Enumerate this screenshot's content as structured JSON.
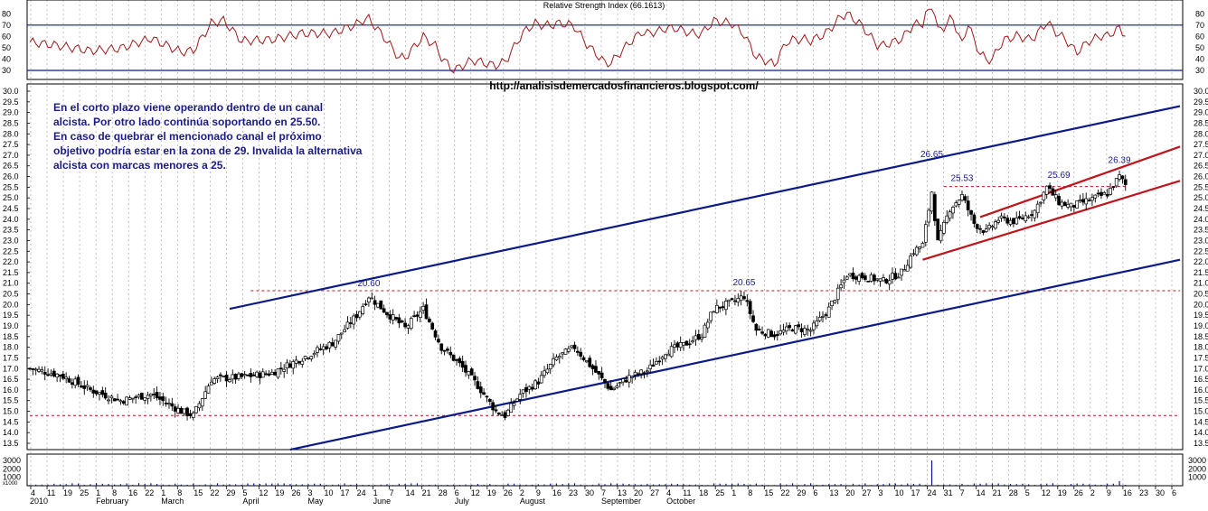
{
  "rsi": {
    "title": "Relative Strength Index (66.1613)",
    "levels": [
      30,
      70
    ],
    "ticks": [
      "80",
      "70",
      "60",
      "50",
      "40",
      "30"
    ]
  },
  "url": "http://analisisdemercadosfinancieros.blogspot.com/",
  "annotation": [
    "En el corto plazo viene operando dentro de un canal",
    "alcista. Por otro lado continúa soportando en 25.50.",
    "En caso de quebrar el mencionado canal el próximo",
    "objetivo podría estar en la zona de 29. Invalida la alternativa",
    "alcista con marcas menores a 25."
  ],
  "volume": {
    "ticks": [
      "3000",
      "2000",
      "1000"
    ],
    "scale_label": "x1000"
  },
  "dates": {
    "days": [
      "4",
      "11",
      "19",
      "25",
      "1",
      "8",
      "16",
      "22",
      "1",
      "8",
      "15",
      "22",
      "29",
      "5",
      "12",
      "19",
      "26",
      "3",
      "10",
      "17",
      "24",
      "1",
      "7",
      "14",
      "21",
      "28",
      "6",
      "12",
      "19",
      "26",
      "2",
      "9",
      "16",
      "23",
      "30",
      "7",
      "13",
      "20",
      "27",
      "4",
      "11",
      "18",
      "25",
      "1",
      "8",
      "15",
      "22",
      "29",
      "6",
      "13",
      "20",
      "27",
      "3",
      "10",
      "17",
      "24",
      "31",
      "7",
      "14",
      "21",
      "28",
      "5",
      "12",
      "19",
      "26",
      "2",
      "9",
      "16",
      "23",
      "30",
      "6"
    ],
    "year": "2010",
    "months": [
      "February",
      "March",
      "April",
      "May",
      "June",
      "July",
      "August",
      "September",
      "October"
    ]
  },
  "chart_data": {
    "type": "candlestick",
    "yaxis": {
      "min": 13.5,
      "max": 30.0,
      "step": 0.5,
      "tick_labels": [
        "30.0",
        "29.5",
        "29.0",
        "28.5",
        "28.0",
        "27.5",
        "27.0",
        "26.5",
        "26.0",
        "25.5",
        "25.0",
        "24.5",
        "24.0",
        "23.5",
        "23.0",
        "22.5",
        "22.0",
        "21.5",
        "21.0",
        "20.5",
        "20.0",
        "19.5",
        "19.0",
        "18.5",
        "18.0",
        "17.5",
        "17.0",
        "16.5",
        "16.0",
        "15.5",
        "15.0",
        "14.5",
        "14.0",
        "13.5"
      ]
    },
    "grid": true,
    "close_series": [
      [
        0,
        17.0
      ],
      [
        10,
        16.7
      ],
      [
        20,
        16.0
      ],
      [
        30,
        15.5
      ],
      [
        40,
        15.8
      ],
      [
        50,
        15.0
      ],
      [
        54,
        14.8
      ],
      [
        60,
        16.5
      ],
      [
        70,
        16.6
      ],
      [
        80,
        16.8
      ],
      [
        90,
        17.5
      ],
      [
        100,
        18.2
      ],
      [
        108,
        19.5
      ],
      [
        112,
        20.4
      ],
      [
        118,
        19.6
      ],
      [
        124,
        18.9
      ],
      [
        130,
        19.8
      ],
      [
        136,
        18.0
      ],
      [
        142,
        17.2
      ],
      [
        148,
        16.2
      ],
      [
        154,
        15.0
      ],
      [
        157,
        14.8
      ],
      [
        162,
        15.8
      ],
      [
        168,
        16.4
      ],
      [
        174,
        17.5
      ],
      [
        180,
        18.0
      ],
      [
        186,
        17.0
      ],
      [
        192,
        16.0
      ],
      [
        198,
        16.6
      ],
      [
        204,
        16.9
      ],
      [
        210,
        17.8
      ],
      [
        216,
        18.1
      ],
      [
        222,
        18.6
      ],
      [
        226,
        19.8
      ],
      [
        232,
        20.1
      ],
      [
        236,
        20.4
      ],
      [
        240,
        18.8
      ],
      [
        246,
        18.6
      ],
      [
        252,
        18.9
      ],
      [
        258,
        18.8
      ],
      [
        264,
        19.8
      ],
      [
        270,
        21.4
      ],
      [
        276,
        21.3
      ],
      [
        282,
        21.1
      ],
      [
        288,
        21.5
      ],
      [
        292,
        22.5
      ],
      [
        295,
        22.8
      ],
      [
        298,
        25.3
      ],
      [
        300,
        22.9
      ],
      [
        304,
        24.5
      ],
      [
        308,
        25.1
      ],
      [
        312,
        23.8
      ],
      [
        316,
        23.4
      ],
      [
        320,
        24.0
      ],
      [
        326,
        23.9
      ],
      [
        332,
        24.4
      ],
      [
        336,
        25.5
      ],
      [
        340,
        24.8
      ],
      [
        344,
        24.6
      ],
      [
        350,
        24.9
      ],
      [
        356,
        25.2
      ],
      [
        360,
        26.0
      ],
      [
        362,
        25.6
      ]
    ],
    "price_labels": [
      {
        "text": "20.60",
        "x": 112,
        "y": 20.6
      },
      {
        "text": "20.65",
        "x": 236,
        "y": 20.65
      },
      {
        "text": "26.65",
        "x": 298,
        "y": 26.65
      },
      {
        "text": "25.53",
        "x": 308,
        "y": 25.53
      },
      {
        "text": "25.69",
        "x": 340,
        "y": 25.69
      },
      {
        "text": "26.39",
        "x": 360,
        "y": 26.39
      }
    ],
    "horizontal_levels": [
      {
        "y": 20.65,
        "x_start": 73,
        "x_end": 380
      },
      {
        "y": 14.8,
        "x_start": 0,
        "x_end": 380
      },
      {
        "y": 25.53,
        "x_start": 302,
        "x_end": 362
      }
    ],
    "trendlines": [
      {
        "name": "upper-blue",
        "color": "#0a1a8a",
        "points": [
          [
            66,
            19.8
          ],
          [
            380,
            29.3
          ]
        ]
      },
      {
        "name": "lower-blue",
        "color": "#0a1a8a",
        "points": [
          [
            86,
            13.2
          ],
          [
            380,
            22.1
          ]
        ]
      },
      {
        "name": "upper-red",
        "color": "#c0141a",
        "points": [
          [
            314,
            24.1
          ],
          [
            380,
            27.4
          ]
        ]
      },
      {
        "name": "lower-red",
        "color": "#c0141a",
        "points": [
          [
            295,
            22.1
          ],
          [
            380,
            25.8
          ]
        ]
      }
    ],
    "colors": {
      "candle": "#000000",
      "grid": "#9a9a9a",
      "level": "#c0141a",
      "rsi_line": "#a01818",
      "rsi_level": "#0a1a8a",
      "annotation_text": "#1a1a8c"
    }
  }
}
